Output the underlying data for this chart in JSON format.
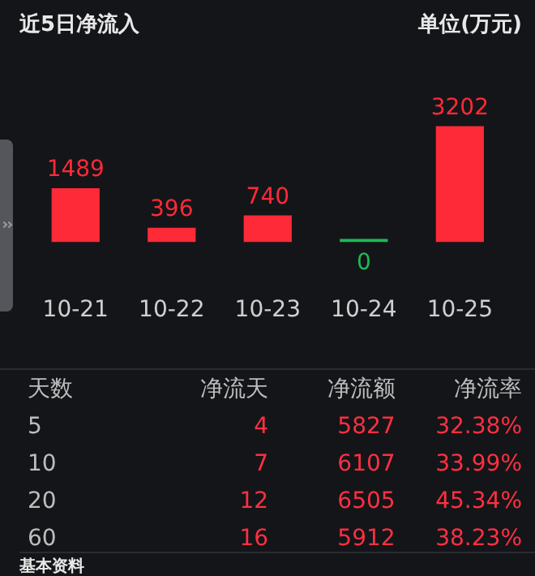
{
  "chart_data": [
    {
      "type": "bar",
      "title": "近5日净流入",
      "subtitle": "单位(万元)",
      "categories": [
        "10-21",
        "10-22",
        "10-23",
        "10-24",
        "10-25"
      ],
      "values": [
        1489,
        396,
        740,
        0,
        3202
      ],
      "colors": [
        "#ff2a37",
        "#ff2a37",
        "#ff2a37",
        "#1db954",
        "#ff2a37"
      ],
      "data_labels": true,
      "legend": false,
      "tick_labels": "x"
    },
    {
      "type": "other",
      "annotations": [
        "天数",
        "净流天",
        "净流额",
        "净流率",
        "5",
        "4",
        "5827",
        "32.38%",
        "10",
        "7",
        "6107",
        "33.99%",
        "20",
        "12",
        "6505",
        "45.34%",
        "60",
        "16",
        "5912",
        "38.23%",
        "基本资料"
      ]
    }
  ]
}
